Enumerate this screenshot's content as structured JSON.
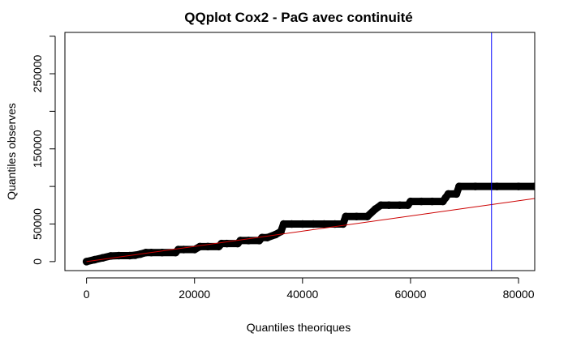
{
  "chart_data": {
    "type": "scatter",
    "title": "QQplot Cox2 - PaG avec continuité",
    "xlabel": "Quantiles theoriques",
    "ylabel": "Quantiles observes",
    "xlim": [
      -4000,
      83000
    ],
    "ylim": [
      -12000,
      305000
    ],
    "x_ticks": [
      0,
      20000,
      40000,
      60000,
      80000
    ],
    "x_tick_labels": [
      "0",
      "20000",
      "40000",
      "60000",
      "80000"
    ],
    "y_ticks": [
      0,
      50000,
      150000,
      250000
    ],
    "y_tick_labels": [
      "0",
      "50000",
      "150000",
      "250000"
    ],
    "y_minor_ticks": [
      100000,
      200000,
      300000
    ],
    "grid": false,
    "series": [
      {
        "kind": "points",
        "color": "#000000",
        "x": [
          0,
          1500,
          3000,
          4500,
          6000,
          8000,
          9000,
          10000,
          11000,
          12000,
          14000,
          16500,
          17000,
          18000,
          20000,
          21000,
          22500,
          24500,
          25000,
          26000,
          28000,
          28500,
          30000,
          32000,
          32500,
          33500,
          35000,
          36000,
          36500,
          38000,
          40000,
          42000,
          44000,
          46000,
          47500,
          48000,
          50000,
          52000,
          53500,
          54500,
          56000,
          58000,
          59500,
          60000,
          62000,
          64000,
          66000,
          66500,
          67000,
          68500,
          69000,
          72000,
          76000,
          80000,
          83000
        ],
        "y": [
          0,
          2500,
          5000,
          7500,
          8000,
          8000,
          8500,
          10000,
          12000,
          12000,
          12000,
          12000,
          16000,
          16000,
          16000,
          20000,
          20000,
          20000,
          24000,
          24000,
          24000,
          28000,
          28000,
          28000,
          32000,
          32000,
          36000,
          40000,
          50000,
          50000,
          50000,
          50000,
          50000,
          50000,
          50000,
          60000,
          60000,
          60000,
          70000,
          75000,
          75000,
          75000,
          75000,
          80000,
          80000,
          80000,
          80000,
          85000,
          90000,
          90000,
          100000,
          100000,
          100000,
          100000,
          100000
        ]
      },
      {
        "kind": "line",
        "color": "#cc0000",
        "x": [
          0,
          83000
        ],
        "y": [
          0,
          84000
        ]
      },
      {
        "kind": "vline",
        "color": "#0000ff",
        "x": 75000
      }
    ]
  }
}
